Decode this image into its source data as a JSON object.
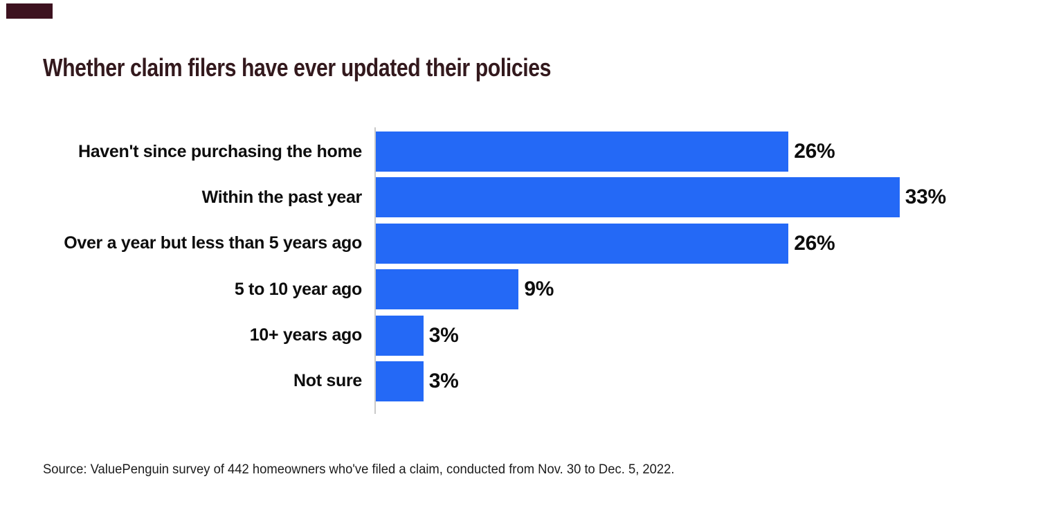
{
  "title": {
    "text": "Whether claim filers have ever updated their policies",
    "color": "#33191d"
  },
  "brand": {
    "mark_color": "#3d1220"
  },
  "chart_data": {
    "type": "bar",
    "orientation": "horizontal",
    "categories": [
      "Haven't since purchasing the home",
      "Within the past year",
      "Over a year but less than 5 years ago",
      "5 to 10 year ago",
      "10+ years ago",
      "Not sure"
    ],
    "values": [
      26,
      33,
      26,
      9,
      3,
      3
    ],
    "value_labels": [
      "26%",
      "33%",
      "26%",
      "9%",
      "3%",
      "3%"
    ],
    "bar_color": "#2469f6",
    "axis_color": "#c9c9c9",
    "grid": "off",
    "legend": "none",
    "xlim": [
      0,
      34.5
    ],
    "xlabel": "",
    "ylabel": ""
  },
  "source": {
    "text": "Source: ValuePenguin survey of 442 homeowners who've filed a claim, conducted from Nov. 30 to Dec. 5, 2022."
  }
}
